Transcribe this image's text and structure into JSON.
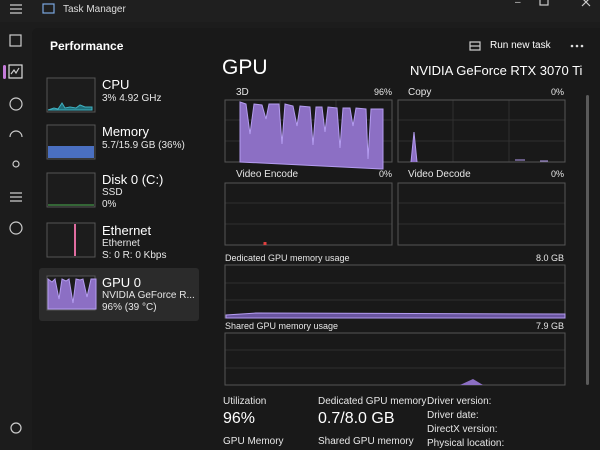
{
  "window": {
    "title": "Task Manager"
  },
  "header": {
    "title": "Performance",
    "action": "Run new task"
  },
  "sidebar": [
    {
      "name": "CPU",
      "lines": [
        "3% 4.92 GHz"
      ]
    },
    {
      "name": "Memory",
      "lines": [
        "5.7/15.9 GB (36%)"
      ]
    },
    {
      "name": "Disk 0 (C:)",
      "lines": [
        "SSD",
        "0%"
      ]
    },
    {
      "name": "Ethernet",
      "lines": [
        "Ethernet",
        "S: 0 R: 0 Kbps"
      ]
    },
    {
      "name": "GPU 0",
      "lines": [
        "NVIDIA GeForce R...",
        "96% (39 °C)"
      ]
    }
  ],
  "main": {
    "title": "GPU",
    "device": "NVIDIA GeForce RTX 3070 Ti",
    "graphs": [
      {
        "label": "3D",
        "value": "96%"
      },
      {
        "label": "Copy",
        "value": "0%"
      },
      {
        "label": "Video Encode",
        "value": "0%"
      },
      {
        "label": "Video Decode",
        "value": "0%"
      },
      {
        "label": "Dedicated GPU memory usage",
        "value": "8.0 GB"
      },
      {
        "label": "Shared GPU memory usage",
        "value": "7.9 GB"
      }
    ],
    "stats": [
      {
        "label": "Utilization",
        "value": "96%",
        "next": "GPU Memory"
      },
      {
        "label": "Dedicated GPU memory",
        "value": "0.7/8.0 GB",
        "next": "Shared GPU memory"
      }
    ],
    "driver": [
      "Driver version:",
      "Driver date:",
      "DirectX version:",
      "Physical location:"
    ]
  }
}
